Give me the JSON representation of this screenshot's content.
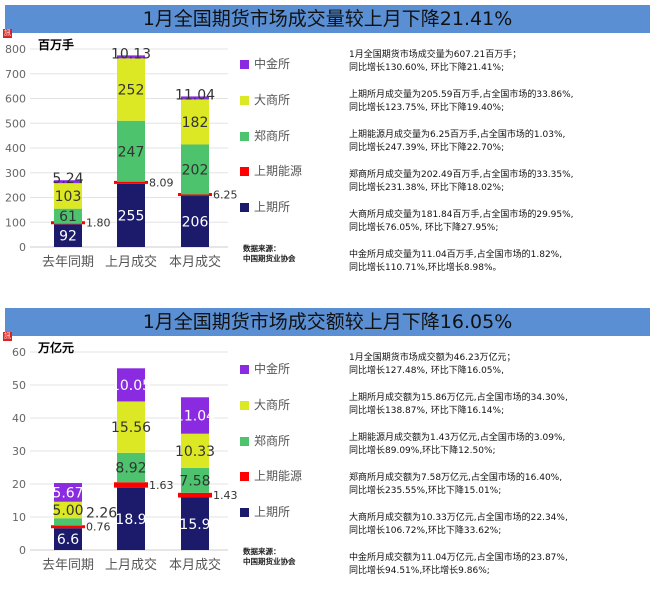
{
  "colors": {
    "title_bg": "#5a8fd3",
    "上期所": "#1b1a6b",
    "上期能源": "#ff0000",
    "郑商所": "#4cc36c",
    "大商所": "#dde824",
    "中金所": "#8a2be2"
  },
  "legend": [
    "中金所",
    "大商所",
    "郑商所",
    "上期能源",
    "上期所"
  ],
  "source": [
    "数据来源：",
    "中国期货业协会"
  ],
  "badge": "訊",
  "panels": [
    {
      "title": "1月全国期货市场成交量较上月下降21.41%",
      "unit": "百万手",
      "notes": [
        [
          "1月全国期货市场成交量为607.21百万手；",
          "同比增长130.60%, 环比下降21.41%;"
        ],
        [
          "上期所月成交量为205.59百万手,占全国市场的33.86%,",
          "同比增长123.75%, 环比下降19.40%;"
        ],
        [
          "上期能源月成交量为6.25百万手,占全国市场的1.03%,",
          "同比增长247.39%, 环比下降22.70%;"
        ],
        [
          "郑商所月成交量为202.49百万手,占全国市场的33.35%,",
          "同比增长231.38%, 环比下降18.02%;"
        ],
        [
          "大商所月成交量为181.84百万手,占全国市场的29.95%,",
          "同比增长76.05%, 环比下降27.95%;"
        ],
        [
          "中金所月成交量为11.04百万手,占全国市场的1.82%,",
          "同比增长110.71%,环比增长8.98%。"
        ]
      ]
    },
    {
      "title": "1月全国期货市场成交额较上月下降16.05%",
      "unit": "万亿元",
      "notes": [
        [
          "1月全国期货市场成交额为46.23万亿元；",
          "同比增长127.48%, 环比下降16.05%,"
        ],
        [
          "上期所月成交额为15.86万亿元,占全国市场的34.30%,",
          "同比增长138.87%, 环比下降16.14%;"
        ],
        [
          "上期能源月成交额为1.43万亿元,占全国市场的3.09%,",
          "同比增长89.09%,环比下降12.50%;"
        ],
        [
          "郑商所月成交额为7.58万亿元,占全国市场的16.40%,",
          "同比增长235.55%,环比下降15.01%;"
        ],
        [
          "大商所月成交额为10.33万亿元,占全国市场的22.34%,",
          "同比增长106.72%,环比下降33.62%;"
        ],
        [
          "中金所月成交额为11.04万亿元,占全国市场的23.87%,",
          "同比增长94.51%,环比增长9.86%;"
        ]
      ]
    }
  ],
  "chart_data": [
    {
      "type": "bar",
      "stacked": true,
      "title": "1月全国期货市场成交量较上月下降21.41%",
      "ylabel": "百万手",
      "categories": [
        "去年同期",
        "上月成交",
        "本月成交"
      ],
      "ylim": [
        0,
        800
      ],
      "yticks": [
        0,
        100,
        200,
        300,
        400,
        500,
        600,
        700,
        800
      ],
      "series": [
        {
          "name": "上期所",
          "values": [
            92,
            255,
            206
          ],
          "labels": [
            "92",
            "255",
            "206"
          ]
        },
        {
          "name": "上期能源",
          "values": [
            1.8,
            8.09,
            6.25
          ],
          "labels": [
            "1.80",
            "8.09",
            "6.25"
          ]
        },
        {
          "name": "郑商所",
          "values": [
            61,
            247,
            202
          ],
          "labels": [
            "61",
            "247",
            "202"
          ]
        },
        {
          "name": "大商所",
          "values": [
            103,
            252,
            182
          ],
          "labels": [
            "103",
            "252",
            "182"
          ]
        },
        {
          "name": "中金所",
          "values": [
            5.24,
            10.13,
            11.04
          ],
          "labels": [
            "5.24",
            "10.13",
            "11.04"
          ]
        }
      ],
      "legend_position": "right",
      "grid": true
    },
    {
      "type": "bar",
      "stacked": true,
      "title": "1月全国期货市场成交额较上月下降16.05%",
      "ylabel": "万亿元",
      "categories": [
        "去年同期",
        "上月成交",
        "本月成交"
      ],
      "ylim": [
        0,
        60
      ],
      "yticks": [
        0,
        10,
        20,
        30,
        40,
        50,
        60
      ],
      "series": [
        {
          "name": "上期所",
          "values": [
            6.6,
            18.9,
            15.9
          ],
          "labels": [
            "6.6",
            "18.9",
            "15.9"
          ]
        },
        {
          "name": "上期能源",
          "values": [
            0.76,
            1.63,
            1.43
          ],
          "labels": [
            "0.76",
            "1.63",
            "1.43"
          ]
        },
        {
          "name": "郑商所",
          "values": [
            2.26,
            8.92,
            7.58
          ],
          "labels": [
            "2.26",
            "8.92",
            "7.58"
          ]
        },
        {
          "name": "大商所",
          "values": [
            5.0,
            15.56,
            10.33
          ],
          "labels": [
            "5.00",
            "15.56",
            "10.33"
          ]
        },
        {
          "name": "中金所",
          "values": [
            5.67,
            10.05,
            11.04
          ],
          "labels": [
            "5.67",
            "10.05",
            "11.04"
          ]
        }
      ],
      "legend_position": "right",
      "grid": true
    }
  ]
}
